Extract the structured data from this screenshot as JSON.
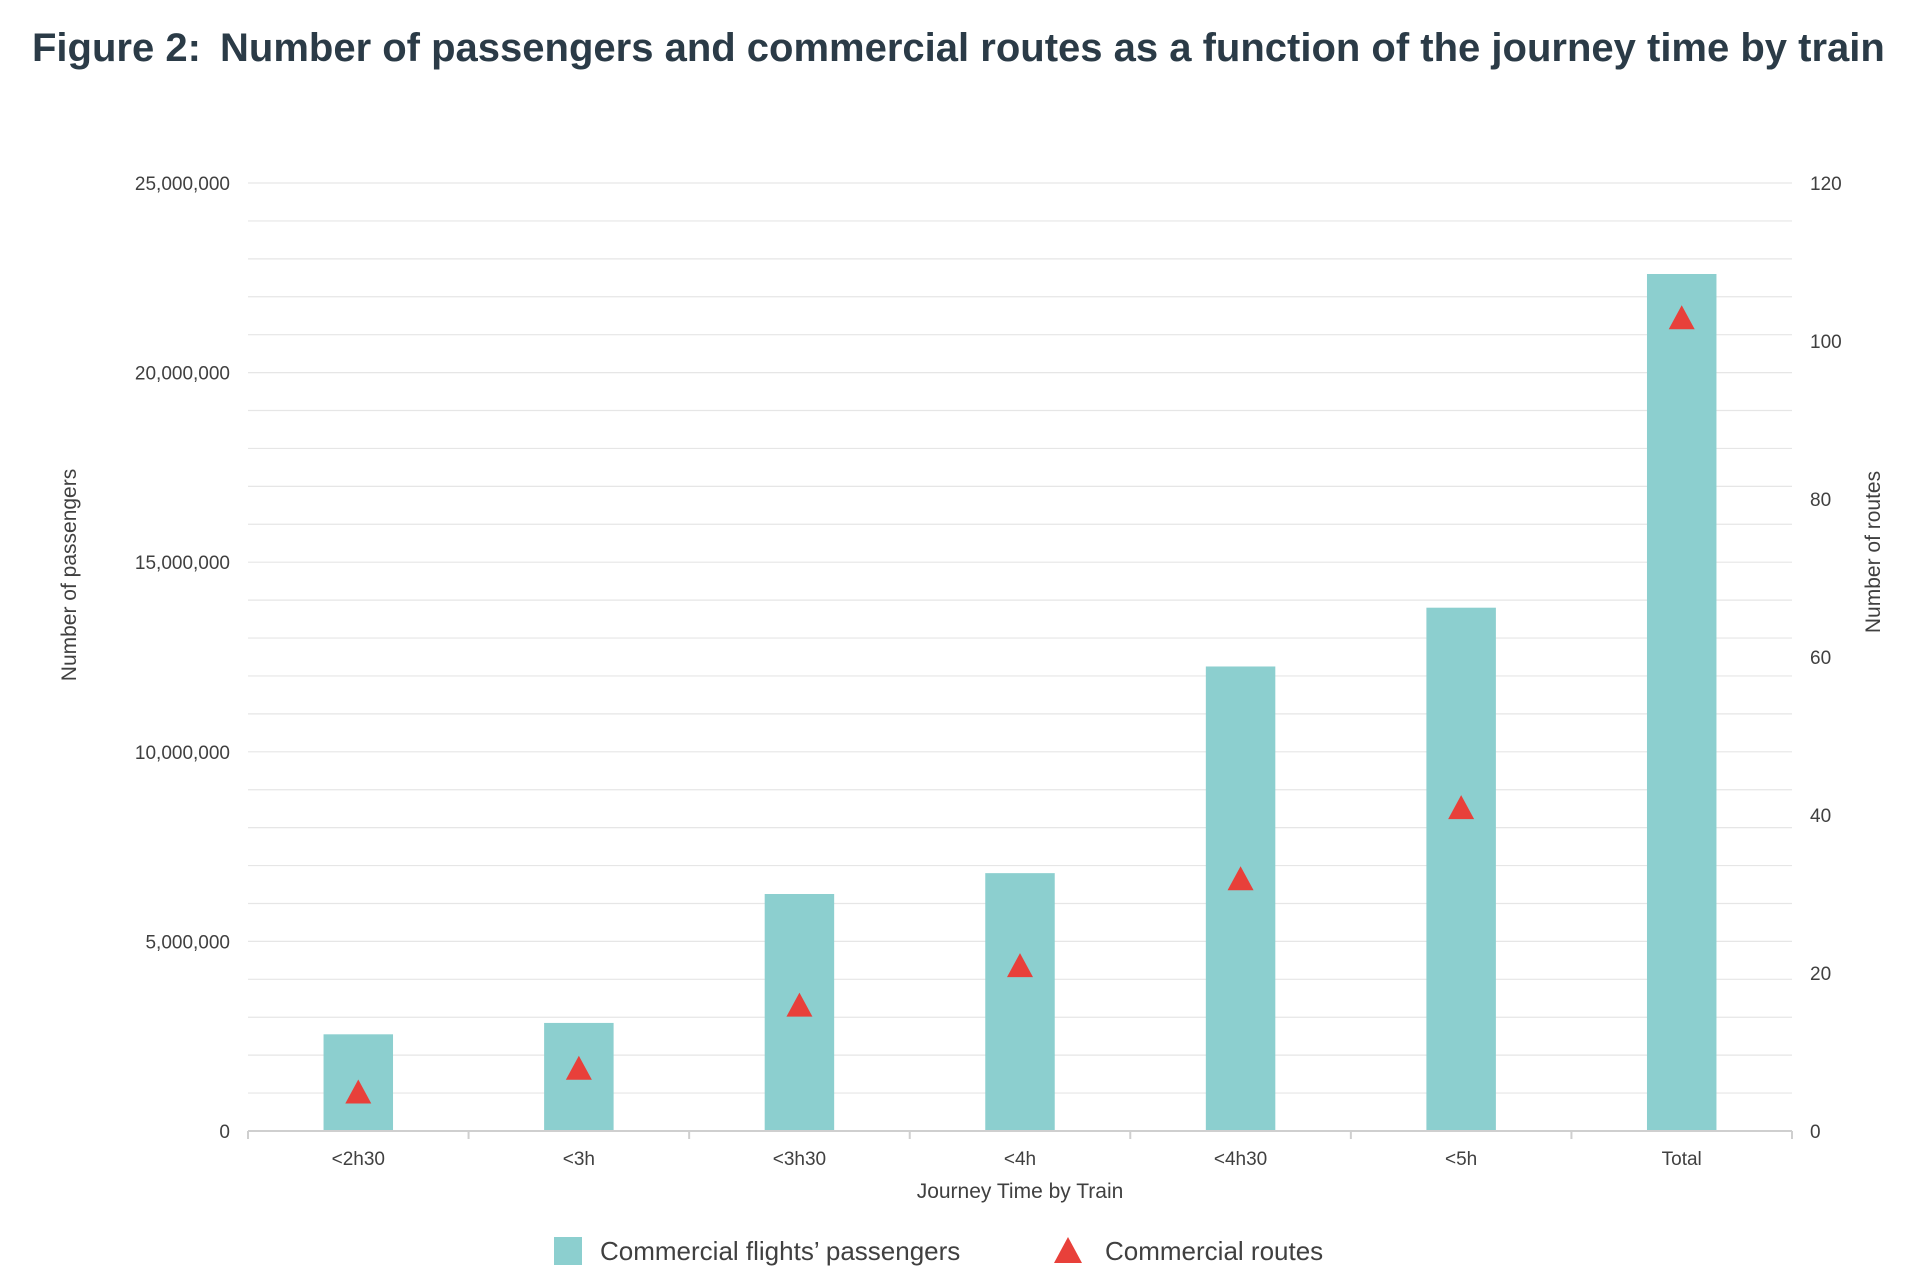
{
  "figure": {
    "number": "Figure 2:",
    "title": "Number of passengers and commercial routes as a function of the journey time by train"
  },
  "colors": {
    "bars": "#8ccfcf",
    "markers": "#e8403a",
    "grid": "#e6e6e6",
    "axis": "#cfcfcf",
    "text": "#404040",
    "title": "#2b3b47"
  },
  "chart_data": {
    "type": "bar",
    "title": "Number of passengers and commercial routes as a function of the journey time by train",
    "xlabel": "Journey Time by Train",
    "ylabel": "Number of passengers",
    "y2label": "Number of routes",
    "categories": [
      "<2h30",
      "<3h",
      "<3h30",
      "<4h",
      "<4h30",
      "<5h",
      "Total"
    ],
    "series": [
      {
        "name": "Commercial flights’ passengers",
        "kind": "bar",
        "axis": "left",
        "values": [
          2550000,
          2850000,
          6250000,
          6800000,
          12250000,
          13800000,
          22600000
        ]
      },
      {
        "name": "Commercial routes",
        "kind": "marker",
        "marker": "triangle",
        "axis": "right",
        "values": [
          5,
          8,
          16,
          21,
          32,
          41,
          103
        ]
      }
    ],
    "ylim": [
      0,
      25000000
    ],
    "y2lim": [
      0,
      120
    ],
    "yticks": [
      "0",
      "5,000,000",
      "10,000,000",
      "15,000,000",
      "20,000,000",
      "25,000,000"
    ],
    "y2ticks": [
      "0",
      "20",
      "40",
      "60",
      "80",
      "100",
      "120"
    ],
    "grid": true,
    "legend": "bottom"
  }
}
